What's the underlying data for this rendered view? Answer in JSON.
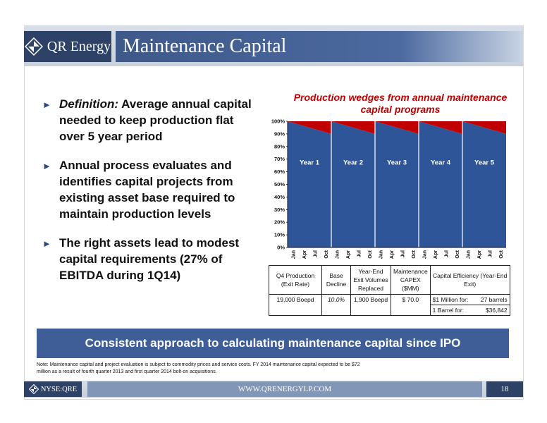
{
  "header": {
    "logo_text": "QR Energy",
    "title": "Maintenance Capital"
  },
  "bullets": [
    {
      "lead": "Definition:",
      "text": " Average annual capital needed to keep production flat over 5 year period"
    },
    {
      "lead": "",
      "text": "Annual process evaluates and identifies capital projects from existing asset base required to maintain production levels"
    },
    {
      "lead": "",
      "text": "The right assets lead to modest capital requirements (27% of EBITDA during 1Q14)"
    }
  ],
  "chart_data": {
    "type": "area",
    "title": "Production wedges from annual maintenance capital programs",
    "x": [
      "Jan",
      "Apr",
      "Jul",
      "Oct",
      "Jan",
      "Apr",
      "Jul",
      "Oct",
      "Jan",
      "Apr",
      "Jul",
      "Oct",
      "Jan",
      "Apr",
      "Jul",
      "Oct",
      "Jan",
      "Apr",
      "Jul",
      "Oct"
    ],
    "yticks": [
      "0%",
      "10%",
      "20%",
      "30%",
      "40%",
      "50%",
      "60%",
      "70%",
      "80%",
      "90%",
      "100%"
    ],
    "ylim": [
      0,
      100
    ],
    "segments": [
      {
        "label": "Year 1",
        "start": 100,
        "end": 90
      },
      {
        "label": "Year 2",
        "start": 100,
        "end": 90
      },
      {
        "label": "Year 3",
        "start": 100,
        "end": 90
      },
      {
        "label": "Year 4",
        "start": 100,
        "end": 90
      },
      {
        "label": "Year 5",
        "start": 100,
        "end": 90
      }
    ],
    "colors": {
      "base": "#2e5597",
      "decline": "#c00000"
    }
  },
  "table": {
    "headers": [
      "Q4 Production (Exit Rate)",
      "Base Decline",
      "Year-End Exit Volumes Replaced",
      "Maintenance CAPEX ($MM)",
      "Capital Efficiency (Year-End Exit)"
    ],
    "row": {
      "production": "19,000 Boepd",
      "decline": "10.0%",
      "volumes": "1,900 Boepd",
      "capex": "$ 70.0",
      "eff1_label": "$1 Million for:",
      "eff1_value": "27 barrels",
      "eff2_label": "1 Barrel for:",
      "eff2_value": "$36,842"
    }
  },
  "banner": "Consistent approach to calculating maintenance capital since IPO",
  "note": "Note: Maintenance capital and project evaluation is subject to commodity prices and service costs.  FY 2014 maintenance capital expected to be $72 million as a result of fourth quarter 2013 and first quarter 2014 bolt-on acquisitions.",
  "footer": {
    "ticker": "NYSE:QRE",
    "url": "WWW.QRENERGYLP.COM",
    "page": "18"
  }
}
